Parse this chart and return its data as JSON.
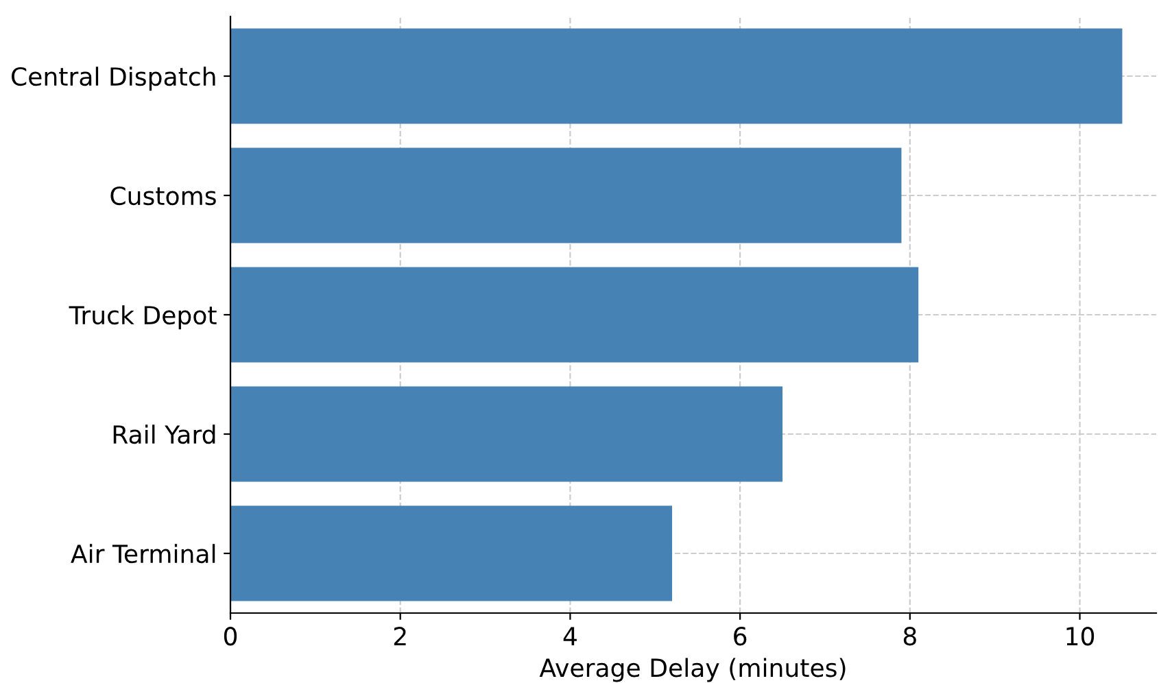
{
  "chart_data": {
    "type": "bar",
    "orientation": "horizontal",
    "xlabel": "Average Delay (minutes)",
    "categories": [
      "Central Dispatch",
      "Customs",
      "Truck Depot",
      "Rail Yard",
      "Air Terminal"
    ],
    "values": [
      10.5,
      7.9,
      8.1,
      6.5,
      5.2
    ],
    "color": "#4682b4",
    "xlim": [
      0,
      10.9
    ],
    "xticks": [
      0,
      2,
      4,
      6,
      8,
      10
    ],
    "grid": true,
    "line_style": "dashed"
  }
}
